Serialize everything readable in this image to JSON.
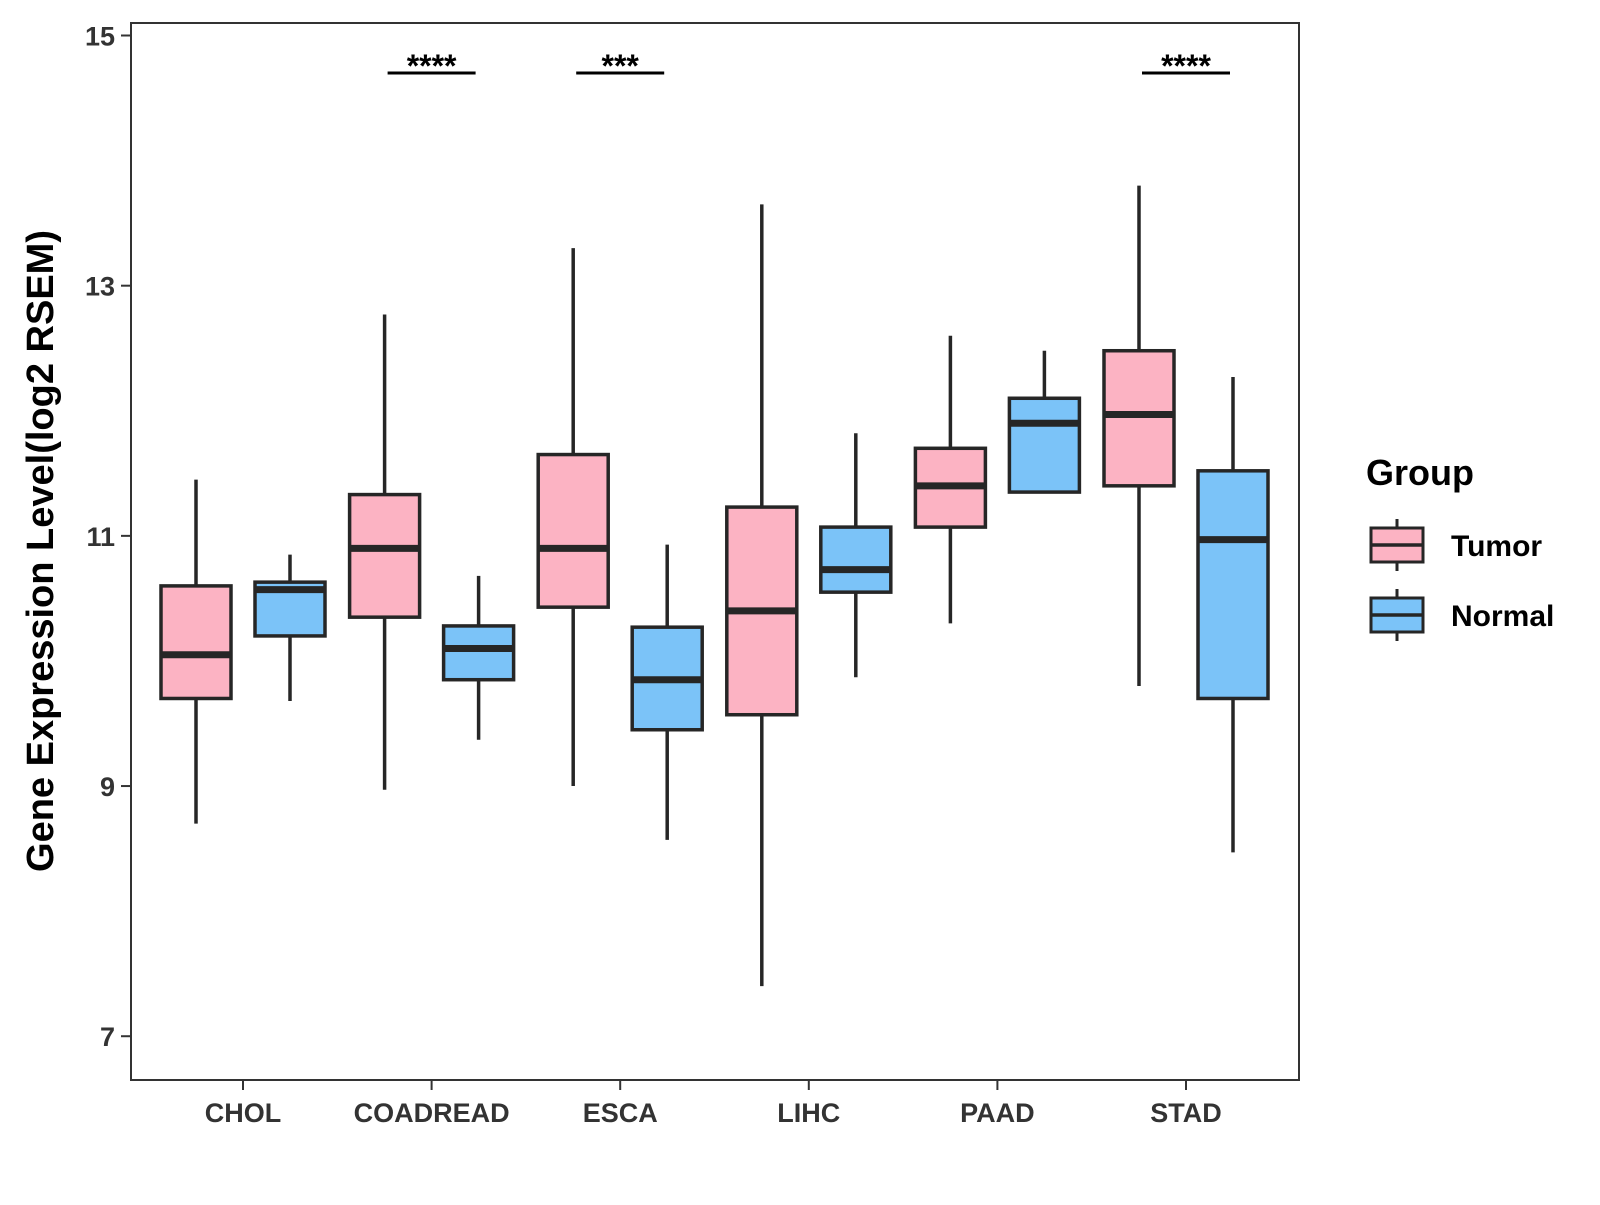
{
  "chart_data": {
    "type": "boxplot",
    "title": "",
    "xlabel": "",
    "ylabel": "Gene Expression Level(log2 RSEM)",
    "ylim": [
      6.65,
      15.1
    ],
    "yticks": [
      7,
      9,
      11,
      13,
      15
    ],
    "categories": [
      "CHOL",
      "COADREAD",
      "ESCA",
      "LIHC",
      "PAAD",
      "STAD"
    ],
    "legend": {
      "title": "Group",
      "position": "right",
      "items": [
        {
          "name": "Tumor",
          "color": "#fcb3c3"
        },
        {
          "name": "Normal",
          "color": "#7bc3f8"
        }
      ]
    },
    "series": [
      {
        "name": "Tumor",
        "color": "#fcb3c3",
        "boxes": [
          {
            "whisker_low": 8.7,
            "q1": 9.7,
            "median": 10.05,
            "q3": 10.6,
            "whisker_high": 11.45
          },
          {
            "whisker_low": 8.97,
            "q1": 10.35,
            "median": 10.9,
            "q3": 11.33,
            "whisker_high": 12.77
          },
          {
            "whisker_low": 9.0,
            "q1": 10.43,
            "median": 10.9,
            "q3": 11.65,
            "whisker_high": 13.3
          },
          {
            "whisker_low": 7.4,
            "q1": 9.57,
            "median": 10.4,
            "q3": 11.23,
            "whisker_high": 13.65
          },
          {
            "whisker_low": 10.3,
            "q1": 11.07,
            "median": 11.4,
            "q3": 11.7,
            "whisker_high": 12.6
          },
          {
            "whisker_low": 9.8,
            "q1": 11.4,
            "median": 11.97,
            "q3": 12.48,
            "whisker_high": 13.8
          }
        ]
      },
      {
        "name": "Normal",
        "color": "#7bc3f8",
        "boxes": [
          {
            "whisker_low": 9.68,
            "q1": 10.2,
            "median": 10.57,
            "q3": 10.63,
            "whisker_high": 10.85
          },
          {
            "whisker_low": 9.37,
            "q1": 9.85,
            "median": 10.1,
            "q3": 10.28,
            "whisker_high": 10.68
          },
          {
            "whisker_low": 8.57,
            "q1": 9.45,
            "median": 9.85,
            "q3": 10.27,
            "whisker_high": 10.93
          },
          {
            "whisker_low": 9.87,
            "q1": 10.55,
            "median": 10.73,
            "q3": 11.07,
            "whisker_high": 11.82
          },
          {
            "whisker_low": 11.35,
            "q1": 11.35,
            "median": 11.9,
            "q3": 12.1,
            "whisker_high": 12.48
          },
          {
            "whisker_low": 8.47,
            "q1": 9.7,
            "median": 10.97,
            "q3": 11.52,
            "whisker_high": 12.27
          }
        ]
      }
    ],
    "annotations": [
      {
        "category": "COADREAD",
        "label": "****",
        "y": 14.7
      },
      {
        "category": "ESCA",
        "label": "***",
        "y": 14.7
      },
      {
        "category": "STAD",
        "label": "****",
        "y": 14.7
      }
    ]
  }
}
